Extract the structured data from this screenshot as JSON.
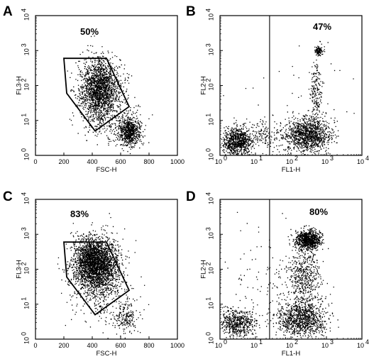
{
  "chart_data": [
    {
      "type": "scatter",
      "panel": "A",
      "percent_label": "50%",
      "xlabel": "FSC-H",
      "ylabel": "FL3-H",
      "x_scale": "linear",
      "y_scale": "log",
      "xlim": [
        0,
        1000
      ],
      "ylim": [
        1,
        10000
      ],
      "x_ticks": [
        "0",
        "200",
        "400",
        "600",
        "800",
        "1000"
      ],
      "y_ticks": [
        {
          "base": "10",
          "exp": "0"
        },
        {
          "base": "10",
          "exp": "1"
        },
        {
          "base": "10",
          "exp": "2"
        },
        {
          "base": "10",
          "exp": "3"
        },
        {
          "base": "10",
          "exp": "4"
        }
      ],
      "gate_polygon": [
        [
          200,
          600
        ],
        [
          500,
          600
        ],
        [
          660,
          25
        ],
        [
          420,
          5
        ],
        [
          220,
          60
        ]
      ],
      "clusters": [
        {
          "x": 450,
          "y": 80,
          "sx": 70,
          "sy_log": 0.42,
          "n": 1900
        },
        {
          "x": 660,
          "y": 5,
          "sx": 40,
          "sy_log": 0.2,
          "n": 700
        },
        {
          "x": 520,
          "y": 12,
          "sx": 110,
          "sy_log": 0.35,
          "n": 260
        }
      ]
    },
    {
      "type": "scatter",
      "panel": "B",
      "percent_label": "47%",
      "xlabel": "FL1-H",
      "ylabel": "FL2-H",
      "x_scale": "log",
      "y_scale": "log",
      "xlim": [
        1,
        10000
      ],
      "ylim": [
        1,
        10000
      ],
      "x_ticks": [
        {
          "base": "10",
          "exp": "0"
        },
        {
          "base": "10",
          "exp": "1"
        },
        {
          "base": "10",
          "exp": "2"
        },
        {
          "base": "10",
          "exp": "3"
        },
        {
          "base": "10",
          "exp": "4"
        }
      ],
      "y_ticks": [
        {
          "base": "10",
          "exp": "0"
        },
        {
          "base": "10",
          "exp": "1"
        },
        {
          "base": "10",
          "exp": "2"
        },
        {
          "base": "10",
          "exp": "3"
        },
        {
          "base": "10",
          "exp": "4"
        }
      ],
      "gate_x": 25,
      "clusters": [
        {
          "x": 3,
          "y": 2.5,
          "sx_log": 0.22,
          "sy_log": 0.2,
          "n": 850
        },
        {
          "x": 300,
          "y": 4,
          "sx_log": 0.32,
          "sy_log": 0.25,
          "n": 1150
        },
        {
          "x": 600,
          "y": 1000,
          "sx_log": 0.06,
          "sy_log": 0.06,
          "n": 110
        },
        {
          "x": 500,
          "y": 60,
          "sx_log": 0.08,
          "sy_log": 0.5,
          "n": 200
        },
        {
          "x": 15,
          "y": 4,
          "sx_log": 0.3,
          "sy_log": 0.2,
          "n": 150
        },
        {
          "x": 100,
          "y": 30,
          "sx_log": 1.0,
          "sy_log": 1.0,
          "n": 50
        }
      ]
    },
    {
      "type": "scatter",
      "panel": "C",
      "percent_label": "83%",
      "xlabel": "FSC-H",
      "ylabel": "FL3-H",
      "x_scale": "linear",
      "y_scale": "log",
      "xlim": [
        0,
        1000
      ],
      "ylim": [
        1,
        10000
      ],
      "x_ticks": [
        "0",
        "200",
        "400",
        "600",
        "800",
        "1000"
      ],
      "y_ticks": [
        {
          "base": "10",
          "exp": "0"
        },
        {
          "base": "10",
          "exp": "1"
        },
        {
          "base": "10",
          "exp": "2"
        },
        {
          "base": "10",
          "exp": "3"
        },
        {
          "base": "10",
          "exp": "4"
        }
      ],
      "gate_polygon": [
        [
          200,
          600
        ],
        [
          500,
          600
        ],
        [
          660,
          25
        ],
        [
          420,
          5
        ],
        [
          220,
          60
        ]
      ],
      "clusters": [
        {
          "x": 430,
          "y": 120,
          "sx": 80,
          "sy_log": 0.4,
          "n": 2400
        },
        {
          "x": 380,
          "y": 280,
          "sx": 55,
          "sy_log": 0.25,
          "n": 500
        },
        {
          "x": 640,
          "y": 4,
          "sx": 40,
          "sy_log": 0.2,
          "n": 170
        },
        {
          "x": 500,
          "y": 10,
          "sx": 130,
          "sy_log": 0.4,
          "n": 180
        }
      ]
    },
    {
      "type": "scatter",
      "panel": "D",
      "percent_label": "80%",
      "xlabel": "FL1-H",
      "ylabel": "FL2-H",
      "x_scale": "log",
      "y_scale": "log",
      "xlim": [
        1,
        10000
      ],
      "ylim": [
        1,
        10000
      ],
      "x_ticks": [
        {
          "base": "10",
          "exp": "0"
        },
        {
          "base": "10",
          "exp": "1"
        },
        {
          "base": "10",
          "exp": "2"
        },
        {
          "base": "10",
          "exp": "3"
        },
        {
          "base": "10",
          "exp": "4"
        }
      ],
      "y_ticks": [
        {
          "base": "10",
          "exp": "0"
        },
        {
          "base": "10",
          "exp": "1"
        },
        {
          "base": "10",
          "exp": "2"
        },
        {
          "base": "10",
          "exp": "3"
        },
        {
          "base": "10",
          "exp": "4"
        }
      ],
      "gate_x": 25,
      "clusters": [
        {
          "x": 3,
          "y": 3,
          "sx_log": 0.25,
          "sy_log": 0.2,
          "n": 550
        },
        {
          "x": 200,
          "y": 4,
          "sx_log": 0.35,
          "sy_log": 0.25,
          "n": 1000
        },
        {
          "x": 300,
          "y": 700,
          "sx_log": 0.18,
          "sy_log": 0.14,
          "n": 850
        },
        {
          "x": 250,
          "y": 60,
          "sx_log": 0.22,
          "sy_log": 0.45,
          "n": 500
        },
        {
          "x": 30,
          "y": 40,
          "sx_log": 0.7,
          "sy_log": 0.8,
          "n": 140
        }
      ]
    }
  ]
}
